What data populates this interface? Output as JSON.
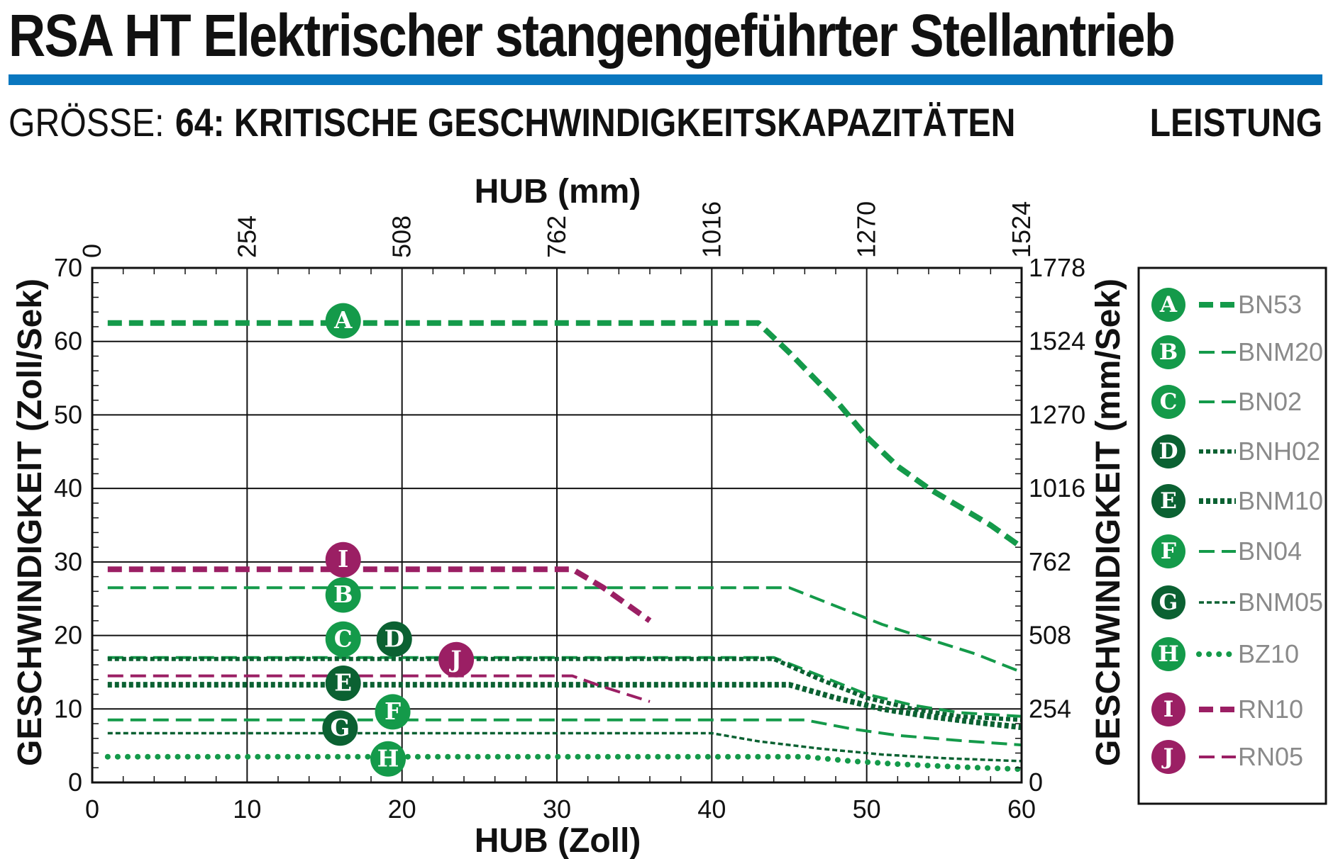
{
  "header": {
    "title": "RSA HT Elektrischer stangengeführter Stellantrieb",
    "size_label": "GRÖSSE:",
    "subtitle": "64: KRITISCHE GESCHWINDIGKEITSKAPAZITÄTEN",
    "section": "LEISTUNG"
  },
  "colors": {
    "title_rule": "#0a77bf",
    "green": "#149a4a",
    "dark_green": "#0b6132",
    "magenta": "#9b1f64"
  },
  "chart_data": {
    "type": "line",
    "xlabel_top": "HUB (mm)",
    "xlabel": "HUB (Zoll)",
    "ylabel": "GESCHWINDIGKEIT (Zoll/Sek)",
    "ylabel_right": "GESCHWINDIGKEIT (mm/Sek)",
    "xlim": [
      0,
      60
    ],
    "ylim": [
      0,
      70
    ],
    "x_ticks": [
      "0",
      "10",
      "20",
      "30",
      "40",
      "50",
      "60"
    ],
    "x_ticks_top": [
      "0",
      "254",
      "508",
      "762",
      "1016",
      "1270",
      "1524"
    ],
    "y_ticks": [
      "0",
      "10",
      "20",
      "30",
      "40",
      "50",
      "60",
      "70"
    ],
    "y_ticks_right": [
      "0",
      "254",
      "508",
      "762",
      "1016",
      "1270",
      "1524",
      "1778"
    ],
    "grid": true,
    "legend_position": "right",
    "series": [
      {
        "id": "A",
        "name": "BN53",
        "color": "#149a4a",
        "badge_x": 16.2,
        "badge_y": 62.8,
        "points": [
          [
            1,
            62.5
          ],
          [
            43,
            62.5
          ],
          [
            45,
            58.5
          ],
          [
            48,
            52
          ],
          [
            50,
            47
          ],
          [
            52,
            43
          ],
          [
            54,
            40
          ],
          [
            56,
            37.5
          ],
          [
            58,
            35
          ],
          [
            60,
            32
          ]
        ]
      },
      {
        "id": "B",
        "name": "BNM20",
        "color": "#149a4a",
        "badge_x": 16.2,
        "badge_y": 25.5,
        "points": [
          [
            1,
            26.5
          ],
          [
            45,
            26.5
          ],
          [
            48,
            24
          ],
          [
            51,
            21.5
          ],
          [
            54,
            19.5
          ],
          [
            57,
            17.5
          ],
          [
            60,
            15
          ]
        ]
      },
      {
        "id": "C",
        "name": "BN02",
        "color": "#149a4a",
        "badge_x": 16.2,
        "badge_y": 19.5,
        "points": [
          [
            1,
            17
          ],
          [
            44,
            17
          ],
          [
            47,
            14.5
          ],
          [
            50,
            12
          ],
          [
            53,
            10.5
          ],
          [
            56,
            9.5
          ],
          [
            60,
            9
          ]
        ]
      },
      {
        "id": "D",
        "name": "BNH02",
        "color": "#0b6132",
        "badge_x": 19.5,
        "badge_y": 19.5,
        "points": [
          [
            1,
            16.8
          ],
          [
            44,
            16.8
          ],
          [
            47,
            14
          ],
          [
            50,
            11.5
          ],
          [
            53,
            10
          ],
          [
            56,
            9
          ],
          [
            60,
            8.5
          ]
        ]
      },
      {
        "id": "E",
        "name": "BNM10",
        "color": "#0b6132",
        "badge_x": 16.2,
        "badge_y": 13.5,
        "points": [
          [
            1,
            13.3
          ],
          [
            45,
            13.3
          ],
          [
            48,
            11.5
          ],
          [
            51,
            10
          ],
          [
            54,
            9
          ],
          [
            57,
            8.2
          ],
          [
            60,
            7.5
          ]
        ]
      },
      {
        "id": "F",
        "name": "BN04",
        "color": "#149a4a",
        "badge_x": 19.4,
        "badge_y": 9.6,
        "points": [
          [
            1,
            8.5
          ],
          [
            46,
            8.5
          ],
          [
            49,
            7.3
          ],
          [
            52,
            6.4
          ],
          [
            56,
            5.7
          ],
          [
            60,
            5.1
          ]
        ]
      },
      {
        "id": "G",
        "name": "BNM05",
        "color": "#0b6132",
        "badge_x": 16.0,
        "badge_y": 7.4,
        "points": [
          [
            1,
            6.7
          ],
          [
            40,
            6.7
          ],
          [
            43,
            5.6
          ],
          [
            47,
            4.6
          ],
          [
            51,
            3.8
          ],
          [
            55,
            3.3
          ],
          [
            60,
            2.9
          ]
        ]
      },
      {
        "id": "H",
        "name": "BZ10",
        "color": "#149a4a",
        "badge_x": 19.1,
        "badge_y": 3.2,
        "points": [
          [
            1,
            3.5
          ],
          [
            46,
            3.5
          ],
          [
            49,
            2.9
          ],
          [
            52,
            2.5
          ],
          [
            56,
            2.1
          ],
          [
            60,
            1.8
          ]
        ]
      },
      {
        "id": "I",
        "name": "RN10",
        "color": "#9b1f64",
        "badge_x": 16.2,
        "badge_y": 30.3,
        "points": [
          [
            1,
            29
          ],
          [
            31,
            29
          ],
          [
            33,
            26.5
          ],
          [
            36,
            22
          ]
        ]
      },
      {
        "id": "J",
        "name": "RN05",
        "color": "#9b1f64",
        "badge_x": 23.5,
        "badge_y": 16.7,
        "points": [
          [
            1,
            14.5
          ],
          [
            31,
            14.5
          ],
          [
            33,
            13
          ],
          [
            36,
            11
          ]
        ]
      }
    ]
  }
}
